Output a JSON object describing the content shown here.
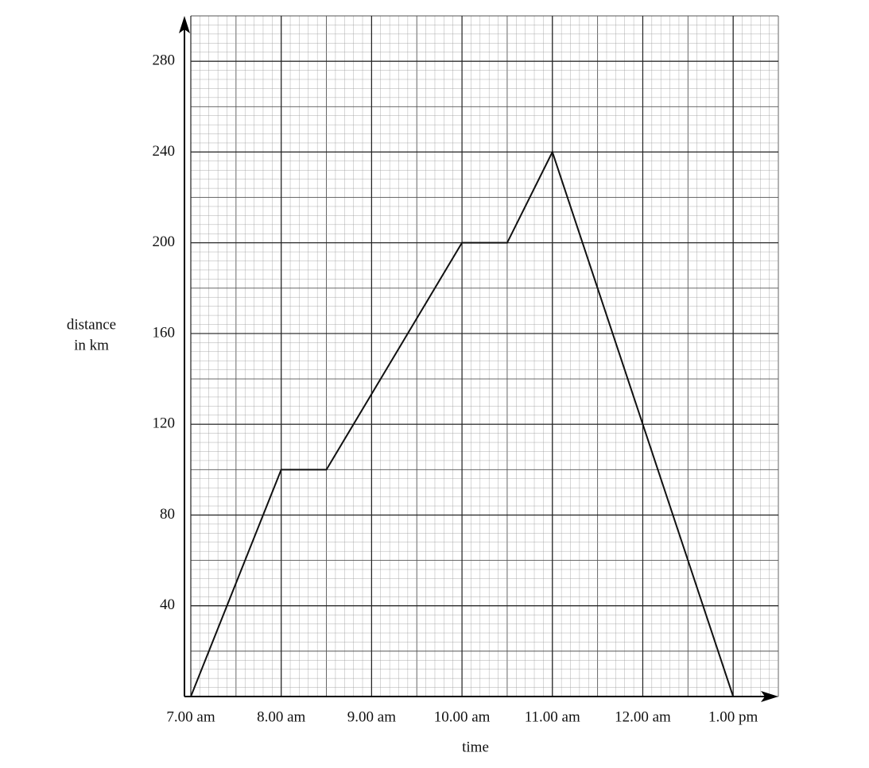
{
  "chart_data": {
    "type": "line",
    "ylabel": [
      "distance",
      "in km"
    ],
    "xlabel": "time",
    "x": [
      7,
      8,
      8.5,
      10,
      10.5,
      11,
      13
    ],
    "series": [
      {
        "color": "#111111",
        "values": [
          0,
          100,
          100,
          200,
          200,
          240,
          0
        ]
      }
    ],
    "xlim": [
      7,
      13.5
    ],
    "xticks": [
      {
        "value": 7,
        "label": "7.00 am"
      },
      {
        "value": 8,
        "label": "8.00 am"
      },
      {
        "value": 9,
        "label": "9.00 am"
      },
      {
        "value": 10,
        "label": "10.00 am"
      },
      {
        "value": 11,
        "label": "11.00 am"
      },
      {
        "value": 12,
        "label": "12.00 am"
      },
      {
        "value": 13,
        "label": "1.00 pm"
      }
    ],
    "ylim": [
      0,
      300
    ],
    "yticks": [
      40,
      80,
      120,
      160,
      200,
      240,
      280
    ],
    "grid": true
  }
}
